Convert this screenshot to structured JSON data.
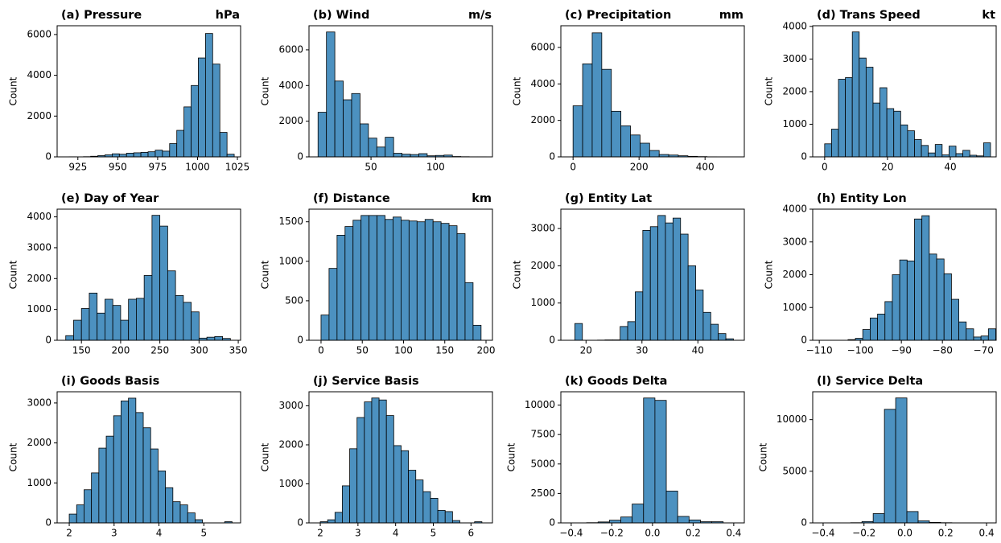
{
  "chart_data": [
    {
      "type": "histogram",
      "title": "(a) Pressure",
      "unit": "hPa",
      "ylabel": "Count",
      "color": "#4c91c0",
      "bins": [
        915,
        919.5,
        924,
        928.5,
        933,
        937.5,
        942,
        946.5,
        951,
        955.5,
        960,
        964.5,
        969,
        973.5,
        978,
        982.5,
        987,
        991.5,
        996,
        1000.5,
        1005,
        1009.5,
        1014,
        1018.5,
        1023
      ],
      "counts": [
        3,
        5,
        0,
        10,
        30,
        60,
        100,
        150,
        130,
        180,
        200,
        220,
        250,
        330,
        280,
        650,
        1300,
        2450,
        3500,
        4850,
        6050,
        4550,
        1200,
        130
      ],
      "xlim": [
        912,
        1027
      ],
      "ylim": [
        0,
        6430
      ],
      "xticks": [
        925,
        950,
        975,
        1000,
        1025
      ],
      "yticks": [
        0,
        2000,
        4000,
        6000
      ]
    },
    {
      "type": "histogram",
      "title": "(b) Wind",
      "unit": "m/s",
      "ylabel": "Count",
      "color": "#4c91c0",
      "bins": [
        9,
        15.5,
        22,
        28.5,
        35,
        41.5,
        48,
        54.5,
        61,
        67.5,
        74,
        80.5,
        87,
        93.5,
        100,
        106.5,
        113,
        119.5,
        126,
        132.5,
        139
      ],
      "counts": [
        2500,
        7000,
        4250,
        3200,
        3550,
        1850,
        1050,
        550,
        1100,
        200,
        150,
        130,
        180,
        60,
        80,
        100,
        20,
        10,
        5,
        5
      ],
      "xlim": [
        2,
        144
      ],
      "ylim": [
        0,
        7350
      ],
      "xticks": [
        50,
        100
      ],
      "yticks": [
        0,
        2000,
        4000,
        6000
      ]
    },
    {
      "type": "histogram",
      "title": "(c) Precipitation",
      "unit": "mm",
      "ylabel": "Count",
      "color": "#4c91c0",
      "bins": [
        0,
        29,
        58,
        87,
        116,
        145,
        174,
        203,
        232,
        261,
        290,
        319,
        348,
        377,
        406,
        435,
        464,
        493
      ],
      "counts": [
        2800,
        5100,
        6800,
        4800,
        2500,
        1700,
        1200,
        750,
        350,
        130,
        100,
        60,
        30,
        15,
        5,
        3,
        2
      ],
      "xlim": [
        -37,
        519
      ],
      "ylim": [
        0,
        7190
      ],
      "xticks": [
        0,
        200,
        400
      ],
      "yticks": [
        0,
        2000,
        4000,
        6000
      ]
    },
    {
      "type": "histogram",
      "title": "(d) Trans Speed",
      "unit": "kt",
      "ylabel": "Count",
      "color": "#4c91c0",
      "bins": [
        0,
        2.2,
        4.4,
        6.6,
        8.8,
        11,
        13.2,
        15.4,
        17.6,
        19.8,
        22,
        24.2,
        26.4,
        28.6,
        30.8,
        33,
        35.2,
        37.4,
        39.6,
        41.8,
        44,
        46.2,
        48.4,
        50.6,
        52.8
      ],
      "counts": [
        400,
        850,
        2380,
        2430,
        3830,
        3030,
        2750,
        1650,
        2120,
        1480,
        1400,
        980,
        800,
        530,
        350,
        120,
        380,
        60,
        330,
        100,
        200,
        50,
        30,
        430
      ],
      "xlim": [
        -3.8,
        54.6
      ],
      "ylim": [
        0,
        4020
      ],
      "xticks": [
        0,
        20,
        40
      ],
      "yticks": [
        0,
        1000,
        2000,
        3000,
        4000
      ]
    },
    {
      "type": "histogram",
      "title": "(e) Day of Year",
      "ylabel": "Count",
      "color": "#4c91c0",
      "bins": [
        130,
        140,
        150,
        160,
        170,
        180,
        190,
        200,
        210,
        220,
        230,
        240,
        250,
        260,
        270,
        280,
        290,
        300,
        310,
        320,
        330,
        340
      ],
      "counts": [
        150,
        650,
        1030,
        1530,
        880,
        1330,
        1130,
        650,
        1330,
        1360,
        2100,
        4050,
        3700,
        2250,
        1450,
        1230,
        920,
        70,
        100,
        120,
        60
      ],
      "xlim": [
        119,
        353
      ],
      "ylim": [
        0,
        4250
      ],
      "xticks": [
        150,
        200,
        250,
        300,
        350
      ],
      "yticks": [
        0,
        1000,
        2000,
        3000,
        4000
      ]
    },
    {
      "type": "histogram",
      "title": "(f) Distance",
      "unit": "km",
      "ylabel": "Count",
      "color": "#4c91c0",
      "bins": [
        0,
        9.7,
        19.4,
        29.1,
        38.8,
        48.5,
        58.2,
        67.9,
        77.6,
        87.3,
        97,
        106.7,
        116.4,
        126.1,
        135.8,
        145.5,
        155.2,
        164.9,
        174.6,
        184.3,
        194
      ],
      "counts": [
        320,
        910,
        1330,
        1440,
        1520,
        1580,
        1580,
        1580,
        1530,
        1560,
        1520,
        1510,
        1500,
        1530,
        1500,
        1480,
        1450,
        1350,
        730,
        190
      ],
      "xlim": [
        -14.6,
        207.8
      ],
      "ylim": [
        0,
        1660
      ],
      "xticks": [
        0,
        50,
        100,
        150,
        200
      ],
      "yticks": [
        0,
        500,
        1000,
        1500
      ]
    },
    {
      "type": "histogram",
      "title": "(g) Entity Lat",
      "ylabel": "Count",
      "color": "#4c91c0",
      "bins": [
        18,
        19.35,
        20.7,
        22.05,
        23.4,
        24.75,
        26.1,
        27.45,
        28.8,
        30.15,
        31.5,
        32.85,
        34.2,
        35.55,
        36.9,
        38.25,
        39.6,
        40.95,
        42.3,
        43.65,
        45,
        46.35
      ],
      "counts": [
        450,
        0,
        0,
        5,
        10,
        10,
        370,
        500,
        1300,
        2950,
        3050,
        3350,
        3150,
        3280,
        2850,
        2000,
        1350,
        750,
        430,
        180,
        40
      ],
      "xlim": [
        15.5,
        48.3
      ],
      "ylim": [
        0,
        3520
      ],
      "xticks": [
        20,
        30,
        40
      ],
      "yticks": [
        0,
        1000,
        2000,
        3000
      ]
    },
    {
      "type": "histogram",
      "title": "(h) Entity Lon",
      "ylabel": "Count",
      "color": "#4c91c0",
      "bins": [
        -103,
        -101.2,
        -99.4,
        -97.6,
        -95.8,
        -94,
        -92.2,
        -90.4,
        -88.6,
        -86.8,
        -85,
        -83.2,
        -81.4,
        -79.6,
        -77.8,
        -76,
        -74.2,
        -72.4,
        -70.6,
        -68.8,
        -67
      ],
      "counts": [
        20,
        60,
        330,
        680,
        800,
        1180,
        2000,
        2450,
        2420,
        3700,
        3800,
        2630,
        2480,
        2030,
        1250,
        560,
        350,
        100,
        130,
        350
      ],
      "xlim": [
        -111.6,
        -66.9
      ],
      "ylim": [
        0,
        4000
      ],
      "xticks": [
        {
          "value": -110,
          "label": "−110"
        },
        {
          "value": -100,
          "label": "−100"
        },
        {
          "value": -90,
          "label": "−90"
        },
        {
          "value": -80,
          "label": "−80"
        },
        {
          "value": -70,
          "label": "−70"
        }
      ],
      "yticks": [
        0,
        1000,
        2000,
        3000,
        4000
      ]
    },
    {
      "type": "histogram",
      "title": "(i) Goods Basis",
      "ylabel": "Count",
      "color": "#4c91c0",
      "bins": [
        2,
        2.165,
        2.33,
        2.495,
        2.66,
        2.825,
        2.99,
        3.155,
        3.32,
        3.485,
        3.65,
        3.815,
        3.98,
        4.145,
        4.31,
        4.475,
        4.64,
        4.805,
        4.97,
        5.135,
        5.3,
        5.465,
        5.63
      ],
      "counts": [
        220,
        450,
        830,
        1250,
        1870,
        2170,
        2680,
        3050,
        3120,
        2760,
        2380,
        1850,
        1300,
        880,
        530,
        450,
        250,
        80,
        0,
        0,
        0,
        30
      ],
      "xlim": [
        1.73,
        5.82
      ],
      "ylim": [
        0,
        3280
      ],
      "xticks": [
        2,
        3,
        4,
        5
      ],
      "yticks": [
        0,
        1000,
        2000,
        3000
      ]
    },
    {
      "type": "histogram",
      "title": "(j) Service Basis",
      "ylabel": "Count",
      "color": "#4c91c0",
      "bins": [
        2,
        2.195,
        2.39,
        2.585,
        2.78,
        2.975,
        3.17,
        3.365,
        3.56,
        3.755,
        3.95,
        4.145,
        4.34,
        4.535,
        4.73,
        4.925,
        5.12,
        5.315,
        5.51,
        5.705,
        5.9,
        6.095,
        6.29
      ],
      "counts": [
        30,
        80,
        270,
        950,
        1900,
        2700,
        3100,
        3200,
        3150,
        2750,
        1980,
        1850,
        1350,
        1100,
        800,
        630,
        320,
        290,
        60,
        0,
        0,
        30
      ],
      "xlim": [
        1.7,
        6.57
      ],
      "ylim": [
        0,
        3360
      ],
      "xticks": [
        2,
        3,
        4,
        5,
        6
      ],
      "yticks": [
        0,
        1000,
        2000,
        3000
      ]
    },
    {
      "type": "histogram",
      "title": "(k) Goods Delta",
      "ylabel": "Count",
      "color": "#4c91c0",
      "bins": [
        -0.324,
        -0.268,
        -0.212,
        -0.156,
        -0.1,
        -0.044,
        0.012,
        0.068,
        0.124,
        0.18,
        0.236,
        0.292,
        0.348
      ],
      "counts": [
        20,
        80,
        230,
        500,
        1600,
        10600,
        10400,
        2700,
        550,
        250,
        100,
        100
      ],
      "xlim": [
        -0.451,
        0.452
      ],
      "ylim": [
        0,
        11130
      ],
      "xticks": [
        {
          "value": -0.4,
          "label": "−0.4"
        },
        {
          "value": -0.2,
          "label": "−0.2"
        },
        {
          "value": 0,
          "label": "0.0"
        },
        0.2,
        0.4
      ],
      "yticks": [
        0,
        2500,
        5000,
        7500,
        10000
      ]
    },
    {
      "type": "histogram",
      "title": "(l) Service Delta",
      "ylabel": "Count",
      "color": "#4c91c0",
      "bins": [
        -0.265,
        -0.21,
        -0.155,
        -0.1,
        -0.045,
        0.01,
        0.065,
        0.12,
        0.175,
        0.23
      ],
      "counts": [
        20,
        130,
        900,
        11000,
        12100,
        1100,
        200,
        50,
        20
      ],
      "xlim": [
        -0.451,
        0.447
      ],
      "ylim": [
        0,
        12700
      ],
      "xticks": [
        {
          "value": -0.4,
          "label": "−0.4"
        },
        {
          "value": -0.2,
          "label": "−0.2"
        },
        {
          "value": 0,
          "label": "0.0"
        },
        0.2,
        0.4
      ],
      "yticks": [
        0,
        5000,
        10000
      ]
    }
  ]
}
